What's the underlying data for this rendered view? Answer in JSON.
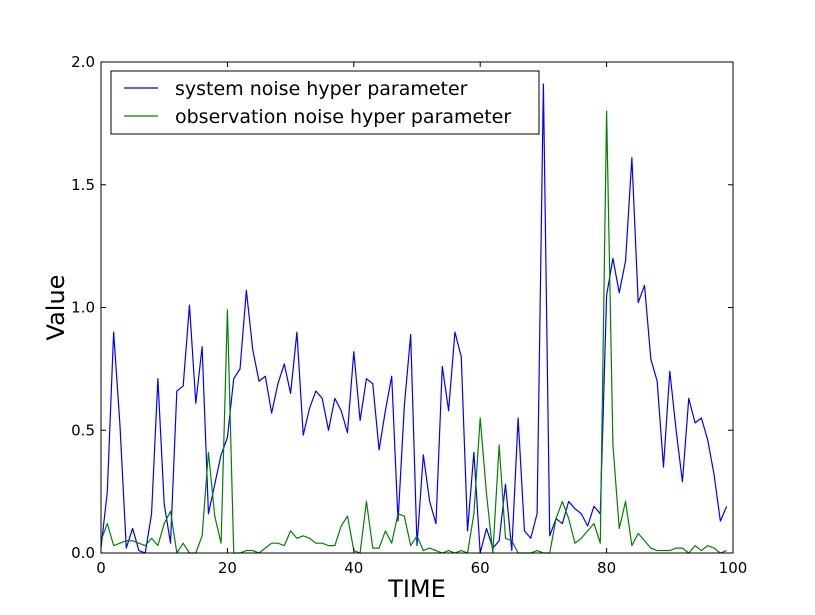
{
  "chart_data": {
    "type": "line",
    "title": "",
    "xlabel": "TIME",
    "ylabel": "Value",
    "xlim": [
      0,
      100
    ],
    "ylim": [
      0,
      2.0
    ],
    "x_ticks": [
      "0",
      "20",
      "40",
      "60",
      "80",
      "100"
    ],
    "y_ticks": [
      "0.0",
      "0.5",
      "1.0",
      "1.5",
      "2.0"
    ],
    "grid": false,
    "legend_position": "top-left",
    "x": [
      0,
      1,
      2,
      3,
      4,
      5,
      6,
      7,
      8,
      9,
      10,
      11,
      12,
      13,
      14,
      15,
      16,
      17,
      18,
      19,
      20,
      21,
      22,
      23,
      24,
      25,
      26,
      27,
      28,
      29,
      30,
      31,
      32,
      33,
      34,
      35,
      36,
      37,
      38,
      39,
      40,
      41,
      42,
      43,
      44,
      45,
      46,
      47,
      48,
      49,
      50,
      51,
      52,
      53,
      54,
      55,
      56,
      57,
      58,
      59,
      60,
      61,
      62,
      63,
      64,
      65,
      66,
      67,
      68,
      69,
      70,
      71,
      72,
      73,
      74,
      75,
      76,
      77,
      78,
      79,
      80,
      81,
      82,
      83,
      84,
      85,
      86,
      87,
      88,
      89,
      90,
      91,
      92,
      93,
      94,
      95,
      96,
      97,
      98,
      99
    ],
    "series": [
      {
        "name": "system noise hyper parameter",
        "color": "#0000ff",
        "values": [
          0.02,
          0.25,
          0.9,
          0.52,
          0.02,
          0.1,
          0.01,
          0.0,
          0.16,
          0.71,
          0.2,
          0.04,
          0.66,
          0.68,
          1.01,
          0.61,
          0.84,
          0.16,
          0.28,
          0.4,
          0.47,
          0.71,
          0.75,
          1.07,
          0.83,
          0.7,
          0.72,
          0.57,
          0.69,
          0.77,
          0.65,
          0.9,
          0.48,
          0.59,
          0.66,
          0.63,
          0.5,
          0.63,
          0.58,
          0.49,
          0.82,
          0.54,
          0.71,
          0.69,
          0.42,
          0.58,
          0.72,
          0.13,
          0.6,
          0.89,
          0.03,
          0.4,
          0.21,
          0.12,
          0.76,
          0.58,
          0.9,
          0.8,
          0.09,
          0.41,
          0.0,
          0.1,
          0.02,
          0.05,
          0.28,
          0.01,
          0.55,
          0.09,
          0.06,
          0.16,
          1.91,
          0.07,
          0.14,
          0.12,
          0.21,
          0.18,
          0.16,
          0.11,
          0.19,
          0.16,
          1.05,
          1.2,
          1.06,
          1.19,
          1.61,
          1.02,
          1.09,
          0.79,
          0.7,
          0.35,
          0.74,
          0.5,
          0.29,
          0.63,
          0.53,
          0.55,
          0.46,
          0.32,
          0.13,
          0.19
        ]
      },
      {
        "name": "observation noise hyper parameter",
        "color": "#008000",
        "values": [
          0.05,
          0.12,
          0.03,
          0.04,
          0.05,
          0.05,
          0.04,
          0.03,
          0.06,
          0.03,
          0.12,
          0.17,
          0.0,
          0.04,
          0.0,
          0.0,
          0.07,
          0.41,
          0.15,
          0.04,
          0.99,
          0.0,
          0.0,
          0.01,
          0.01,
          0.0,
          0.02,
          0.04,
          0.04,
          0.03,
          0.09,
          0.06,
          0.07,
          0.06,
          0.04,
          0.04,
          0.03,
          0.03,
          0.11,
          0.15,
          0.01,
          0.0,
          0.21,
          0.02,
          0.02,
          0.09,
          0.04,
          0.16,
          0.15,
          0.03,
          0.07,
          0.01,
          0.02,
          0.01,
          0.0,
          0.01,
          0.0,
          0.01,
          0.0,
          0.16,
          0.55,
          0.24,
          0.0,
          0.44,
          0.06,
          0.05,
          0.0,
          0.0,
          0.0,
          0.01,
          0.0,
          0.0,
          0.14,
          0.21,
          0.14,
          0.04,
          0.06,
          0.09,
          0.12,
          0.04,
          1.8,
          0.44,
          0.1,
          0.21,
          0.03,
          0.08,
          0.05,
          0.02,
          0.01,
          0.01,
          0.01,
          0.02,
          0.02,
          0.0,
          0.03,
          0.01,
          0.03,
          0.02,
          0.0,
          0.01
        ]
      }
    ]
  }
}
